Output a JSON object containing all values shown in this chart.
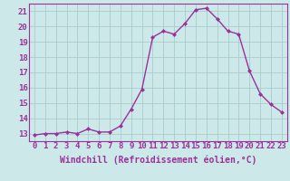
{
  "xlabel": "Windchill (Refroidissement éolien,°C)",
  "hours": [
    0,
    1,
    2,
    3,
    4,
    5,
    6,
    7,
    8,
    9,
    10,
    11,
    12,
    13,
    14,
    15,
    16,
    17,
    18,
    19,
    20,
    21,
    22,
    23
  ],
  "values": [
    12.9,
    13.0,
    13.0,
    13.1,
    13.0,
    13.3,
    13.1,
    13.1,
    13.5,
    14.6,
    15.9,
    19.3,
    19.7,
    19.5,
    20.2,
    21.1,
    21.2,
    20.5,
    19.7,
    19.5,
    17.1,
    15.6,
    14.9,
    14.4
  ],
  "line_color": "#993399",
  "bg_color": "#cce8e8",
  "grid_color": "#aacccc",
  "ylim": [
    12.5,
    21.5
  ],
  "yticks": [
    13,
    14,
    15,
    16,
    17,
    18,
    19,
    20,
    21
  ],
  "tick_label_fontsize": 6.5,
  "xlabel_fontsize": 7.0,
  "marker_size": 2.0,
  "line_width": 1.0
}
